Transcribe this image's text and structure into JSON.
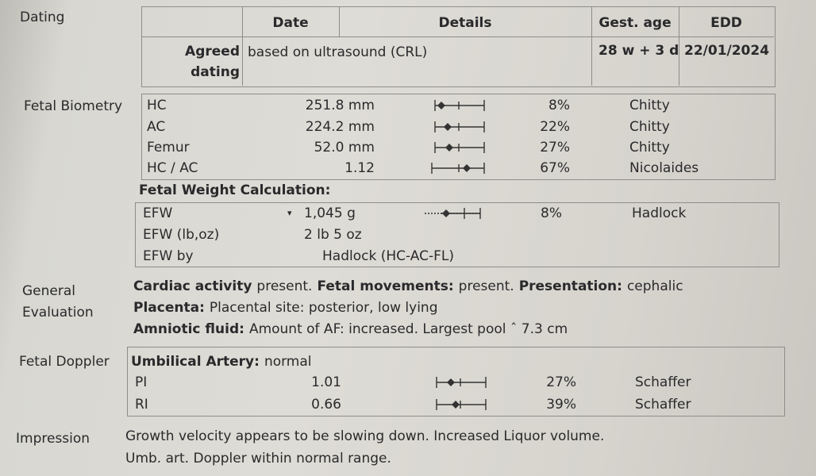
{
  "dating": {
    "label": "Dating",
    "headers": [
      "Date",
      "Details",
      "Gest. age",
      "EDD"
    ],
    "row": {
      "type": "Agreed dating",
      "details": "based on ultrasound (CRL)",
      "gest_age": "28 w + 3 d",
      "edd": "22/01/2024"
    }
  },
  "fetal_biometry": {
    "label": "Fetal Biometry",
    "rows": [
      [
        "HC",
        "251.8 mm",
        "8%",
        "Chitty"
      ],
      [
        "AC",
        "224.2 mm",
        "22%",
        "Chitty"
      ],
      [
        "Femur",
        "52.0 mm",
        "27%",
        "Chitty"
      ],
      [
        "HC / AC",
        "1.12",
        "67%",
        "Nicolaides"
      ]
    ]
  },
  "fetal_weight": {
    "title": "Fetal Weight Calculation:",
    "rows": [
      [
        "EFW",
        "1,045 g",
        "8%",
        "Hadlock"
      ],
      [
        "EFW (lb,oz)",
        "2 lb 5 oz"
      ],
      [
        "EFW by",
        "Hadlock (HC-AC-FL)"
      ]
    ]
  },
  "general_evaluation": {
    "label": "General Evaluation",
    "lines": [
      [
        {
          "label": "Cardiac activity",
          "text": "present."
        },
        {
          "label": "Fetal movements:",
          "text": "present."
        },
        {
          "label": "Presentation:",
          "text": "cephalic"
        }
      ],
      [
        {
          "label": "Placenta:",
          "text": "Placental site: posterior, low lying"
        }
      ],
      [
        {
          "label": "Amniotic fluid:",
          "text": "Amount of AF: increased. Largest pool ˆ 7.3 cm"
        }
      ]
    ]
  },
  "fetal_doppler": {
    "label": "Fetal Doppler",
    "vessel": "Umbilical Artery:",
    "status": "normal",
    "rows": [
      [
        "PI",
        "1.01",
        "27%",
        "Schaffer"
      ],
      [
        "RI",
        "0.66",
        "39%",
        "Schaffer"
      ]
    ]
  },
  "impression": {
    "label": "Impression",
    "lines": [
      "Growth velocity appears to be slowing down. Increased Liquor volume.",
      "Umb. art. Doppler within normal range."
    ]
  }
}
